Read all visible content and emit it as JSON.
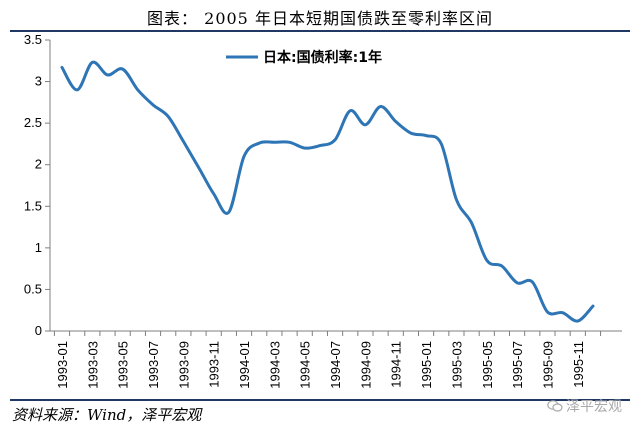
{
  "figure": {
    "title": "图表：  2005 年日本短期国债跌至零利率区间",
    "source": "资料来源：Wind，泽平宏观",
    "watermark": "泽平宏观",
    "watermark_icon": "wechat-icon"
  },
  "chart_data": {
    "type": "line",
    "title": "",
    "xlabel": "",
    "ylabel": "",
    "ylim": [
      0,
      3.5
    ],
    "yticks": [
      0,
      0.5,
      1,
      1.5,
      2,
      2.5,
      3,
      3.5
    ],
    "ytick_labels": [
      "0",
      "0.5",
      "1",
      "1.5",
      "2",
      "2.5",
      "3",
      "3.5"
    ],
    "xtick_labels": [
      "1993-01",
      "1993-03",
      "1993-05",
      "1993-07",
      "1993-09",
      "1993-11",
      "1994-01",
      "1994-03",
      "1994-05",
      "1994-07",
      "1994-09",
      "1994-11",
      "1995-01",
      "1995-03",
      "1995-05",
      "1995-07",
      "1995-09",
      "1995-11"
    ],
    "grid": false,
    "legend_position": "top-center",
    "series": [
      {
        "name": "日本:国债利率:1年",
        "color": "#2e75b6",
        "x": [
          "1993-01",
          "1993-02",
          "1993-03",
          "1993-04",
          "1993-05",
          "1993-06",
          "1993-07",
          "1993-08",
          "1993-09",
          "1993-10",
          "1993-11",
          "1993-12",
          "1994-01",
          "1994-02",
          "1994-03",
          "1994-04",
          "1994-05",
          "1994-06",
          "1994-07",
          "1994-08",
          "1994-09",
          "1994-10",
          "1994-11",
          "1994-12",
          "1995-01",
          "1995-02",
          "1995-03",
          "1995-04",
          "1995-05",
          "1995-06",
          "1995-07",
          "1995-08",
          "1995-09",
          "1995-10",
          "1995-11",
          "1995-12"
        ],
        "values": [
          3.17,
          2.9,
          3.23,
          3.08,
          3.15,
          2.9,
          2.72,
          2.58,
          2.28,
          1.97,
          1.65,
          1.43,
          2.1,
          2.26,
          2.27,
          2.27,
          2.2,
          2.23,
          2.3,
          2.65,
          2.48,
          2.7,
          2.52,
          2.38,
          2.35,
          2.25,
          1.58,
          1.3,
          0.85,
          0.78,
          0.58,
          0.59,
          0.23,
          0.22,
          0.12,
          0.3
        ]
      }
    ]
  }
}
